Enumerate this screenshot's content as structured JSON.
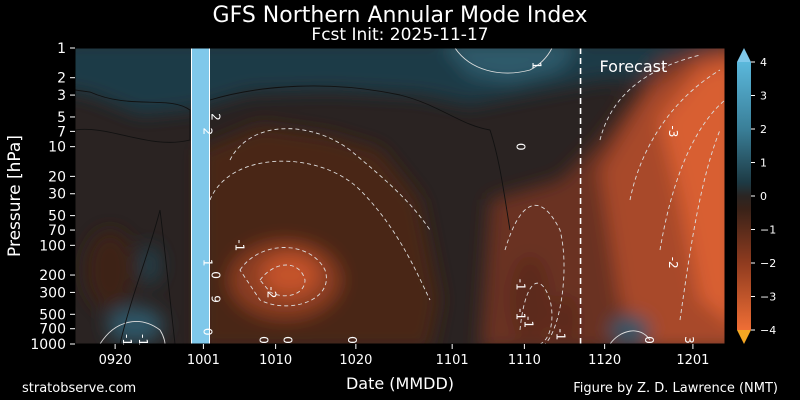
{
  "header": {
    "title": "GFS Northern Annular Mode Index",
    "subtitle": "Fcst Init: 2025-11-17"
  },
  "footer": {
    "left": "stratobserve.com",
    "right": "Figure by Z. D. Lawrence (NMT)"
  },
  "chart_data": {
    "type": "heatmap",
    "title": "GFS Northern Annular Mode Index",
    "subtitle": "Fcst Init: 2025-11-17",
    "xlabel": "Date (MMDD)",
    "ylabel": "Pressure [hPa]",
    "x_ticks": [
      "0920",
      "1001",
      "1010",
      "1020",
      "1101",
      "1110",
      "1120",
      "1201"
    ],
    "y_ticks": [
      1,
      2,
      3,
      5,
      7,
      10,
      20,
      30,
      50,
      70,
      100,
      200,
      300,
      500,
      700,
      1000
    ],
    "y_scale": "log",
    "y_inverted": true,
    "ylim": [
      1000,
      1
    ],
    "xlim": [
      "0915",
      "1205"
    ],
    "colorbar": {
      "ticks": [
        4,
        3,
        2,
        1,
        0,
        -1,
        -2,
        -3,
        -4
      ],
      "range": [
        -4,
        4
      ],
      "colors": {
        "pos_high": "#5bb8dc",
        "pos_low": "#1d3a44",
        "neutral": "#2a2523",
        "neg_low": "#3a2218",
        "neg_high": "#ef6e35"
      }
    },
    "missing_data_band": {
      "from": "1001",
      "to": "1002",
      "color": "#7fc8ea"
    },
    "forecast_line": {
      "date": "1117",
      "label": "Forecast"
    },
    "contour_labels": [
      {
        "text": "1",
        "date": "1111",
        "p": 1.5
      },
      {
        "text": "2",
        "date": "1002",
        "p": 5
      },
      {
        "text": "2",
        "date": "1001",
        "p": 7
      },
      {
        "text": "0",
        "date": "1109",
        "p": 10
      },
      {
        "text": "-3",
        "date": "1128",
        "p": 7
      },
      {
        "text": "-1",
        "date": "1005",
        "p": 100
      },
      {
        "text": "1",
        "date": "1001",
        "p": 150
      },
      {
        "text": "0",
        "date": "1002",
        "p": 200
      },
      {
        "text": "-2",
        "date": "1128",
        "p": 150
      },
      {
        "text": "-2",
        "date": "1009",
        "p": 300
      },
      {
        "text": "9",
        "date": "1002",
        "p": 350
      },
      {
        "text": "-1",
        "date": "1109",
        "p": 250
      },
      {
        "text": "-1",
        "date": "1109",
        "p": 500
      },
      {
        "text": "-1",
        "date": "1110",
        "p": 600
      },
      {
        "text": "-1",
        "date": "1114",
        "p": 800
      },
      {
        "text": "0",
        "date": "1001",
        "p": 750
      },
      {
        "text": "0",
        "date": "1008",
        "p": 1000
      },
      {
        "text": "0",
        "date": "1011",
        "p": 1000
      },
      {
        "text": "0",
        "date": "1019",
        "p": 1000
      },
      {
        "text": "0",
        "date": "1125",
        "p": 1000
      },
      {
        "text": "3",
        "date": "1130",
        "p": 950
      },
      {
        "text": "-1",
        "date": "0921",
        "p": 1000
      },
      {
        "text": "-1",
        "date": "0923",
        "p": 950
      }
    ]
  }
}
